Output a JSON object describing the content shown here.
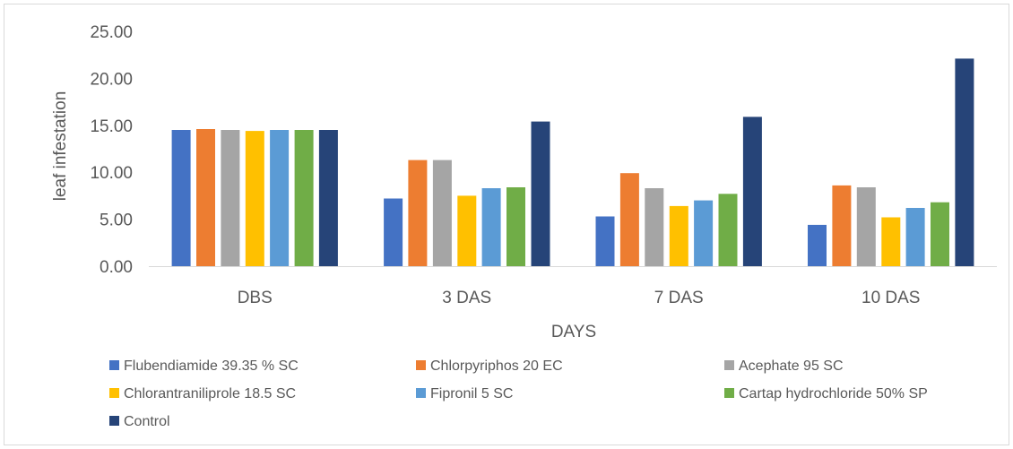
{
  "chart_data": {
    "type": "bar",
    "title": "",
    "xlabel": "DAYS",
    "ylabel": "leaf infestation",
    "categories": [
      "DBS",
      "3 DAS",
      "7 DAS",
      "10 DAS"
    ],
    "ylim": [
      0,
      25
    ],
    "yticks": [
      "0.00",
      "5.00",
      "10.00",
      "15.00",
      "20.00",
      "25.00"
    ],
    "grid": false,
    "legend_position": "bottom",
    "series": [
      {
        "name": "Flubendiamide 39.35 % SC",
        "color": "#4472c4",
        "values": [
          14.5,
          7.2,
          5.3,
          4.4
        ]
      },
      {
        "name": "Chlorpyriphos 20 EC",
        "color": "#ed7d31",
        "values": [
          14.6,
          11.3,
          9.9,
          8.6
        ]
      },
      {
        "name": "Acephate 95 SC",
        "color": "#a5a5a5",
        "values": [
          14.5,
          11.3,
          8.3,
          8.4
        ]
      },
      {
        "name": "Chlorantraniliprole 18.5 SC",
        "color": "#ffc000",
        "values": [
          14.4,
          7.5,
          6.4,
          5.2
        ]
      },
      {
        "name": "Fipronil 5 SC",
        "color": "#5b9bd5",
        "values": [
          14.5,
          8.3,
          7.0,
          6.2
        ]
      },
      {
        "name": "Cartap hydrochloride 50% SP",
        "color": "#70ad47",
        "values": [
          14.5,
          8.4,
          7.7,
          6.8
        ]
      },
      {
        "name": "Control",
        "color": "#264478",
        "values": [
          14.5,
          15.4,
          15.9,
          22.1
        ]
      }
    ]
  }
}
